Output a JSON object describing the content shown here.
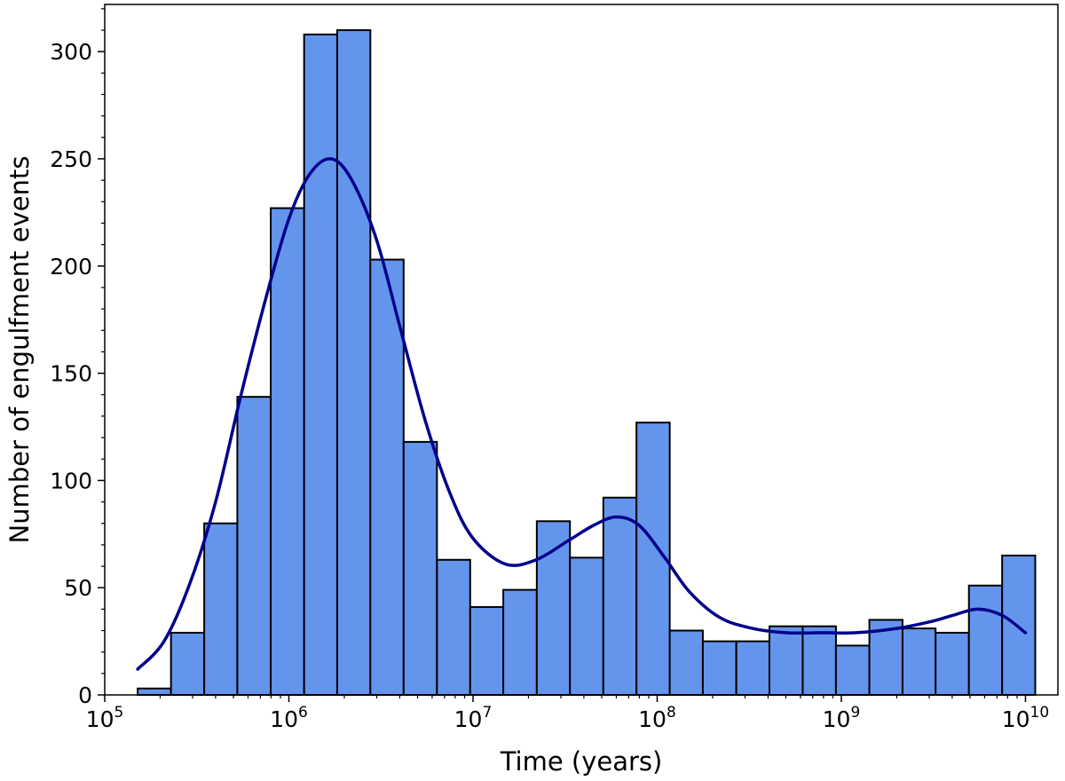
{
  "chart_data": {
    "type": "bar",
    "subtype": "histogram-with-kde",
    "title": "",
    "xlabel": "Time (years)",
    "ylabel": "Number of engulfment events",
    "x_scale": "log10",
    "xlim": [
      100000,
      15000000000
    ],
    "ylim": [
      0,
      322
    ],
    "grid": false,
    "legend": "none",
    "x_ticks": [
      {
        "value": 100000,
        "base": "10",
        "exp": "5"
      },
      {
        "value": 1000000,
        "base": "10",
        "exp": "6"
      },
      {
        "value": 10000000,
        "base": "10",
        "exp": "7"
      },
      {
        "value": 100000000,
        "base": "10",
        "exp": "8"
      },
      {
        "value": 1000000000,
        "base": "10",
        "exp": "9"
      },
      {
        "value": 10000000000,
        "base": "10",
        "exp": "10"
      }
    ],
    "y_ticks": [
      0,
      50,
      100,
      150,
      200,
      250,
      300
    ],
    "bin_edges": [
      151000,
      229000,
      347000,
      525000,
      797000,
      1210000,
      1830000,
      2770000,
      4200000,
      6370000,
      9650000,
      14600000,
      22200000,
      33600000,
      51000000,
      77200000,
      117000000,
      177000000,
      269000000,
      407000000,
      617000000,
      935000000,
      1420000000,
      2150000000,
      3250000000,
      4930000000,
      7470000000,
      11300000000
    ],
    "counts": [
      3,
      29,
      80,
      139,
      227,
      308,
      310,
      203,
      118,
      63,
      41,
      49,
      81,
      64,
      92,
      127,
      30,
      25,
      25,
      32,
      32,
      23,
      35,
      31,
      29,
      51,
      65
    ],
    "kde": {
      "x": [
        151000,
        210000,
        290000,
        400000,
        550000,
        750000,
        1000000,
        1300000,
        1700000,
        2200000,
        3000000,
        4000000,
        5500000,
        7500000,
        10000000,
        15000000,
        22000000,
        33000000,
        45000000,
        60000000,
        80000000,
        110000000,
        150000000,
        220000000,
        330000000,
        500000000,
        800000000,
        1200000000,
        2000000000,
        3000000000,
        4000000000,
        5500000000,
        7500000000,
        10000000000
      ],
      "y": [
        12,
        25,
        52,
        90,
        140,
        185,
        222,
        243,
        250,
        240,
        212,
        172,
        128,
        94,
        73,
        61,
        63,
        72,
        79,
        83,
        79,
        64,
        48,
        36,
        31,
        29,
        29,
        29,
        31,
        34,
        37,
        40,
        37,
        29
      ]
    },
    "colors": {
      "bar_fill": "#6495ED",
      "bar_edge": "#000000",
      "kde_line": "#00008B"
    }
  }
}
